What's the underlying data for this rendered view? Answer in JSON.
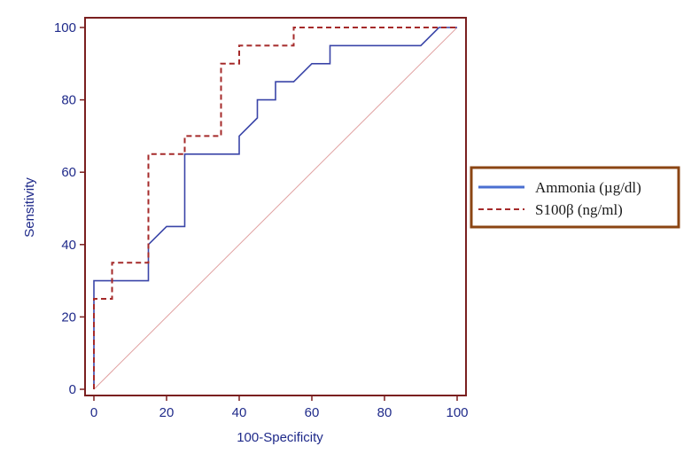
{
  "chart_data": {
    "type": "line",
    "xlabel": "100-Specificity",
    "ylabel": "Sensitivity",
    "xlim": [
      0,
      100
    ],
    "ylim": [
      0,
      100
    ],
    "xticks": [
      0,
      20,
      40,
      60,
      80,
      100
    ],
    "yticks": [
      0,
      20,
      40,
      60,
      80,
      100
    ],
    "grid": false,
    "legend_position": "right",
    "series": [
      {
        "name": "Ammonia (µg/dl)",
        "color": "#3a45a8",
        "style": "solid",
        "x": [
          0,
          0,
          15,
          15,
          20,
          25,
          25,
          40,
          40,
          45,
          45,
          50,
          50,
          55,
          60,
          65,
          65,
          90,
          95,
          100
        ],
        "y": [
          0,
          30,
          30,
          40,
          45,
          45,
          65,
          65,
          70,
          75,
          80,
          80,
          85,
          85,
          90,
          90,
          95,
          95,
          100,
          100
        ]
      },
      {
        "name": "S100β (ng/ml)",
        "color": "#a52a2a",
        "style": "dashed",
        "x": [
          0,
          0,
          5,
          5,
          15,
          15,
          25,
          25,
          35,
          35,
          40,
          40,
          55,
          55,
          100
        ],
        "y": [
          0,
          25,
          25,
          35,
          35,
          65,
          65,
          70,
          70,
          90,
          90,
          95,
          95,
          100,
          100
        ]
      },
      {
        "name": "",
        "color": "#e0a0a0",
        "style": "thin",
        "x": [
          0,
          100
        ],
        "y": [
          0,
          100
        ]
      }
    ]
  },
  "colors": {
    "frame": "#7a1f1f",
    "legend_border": "#8b4513",
    "tick_text": "#1f2a8a"
  }
}
